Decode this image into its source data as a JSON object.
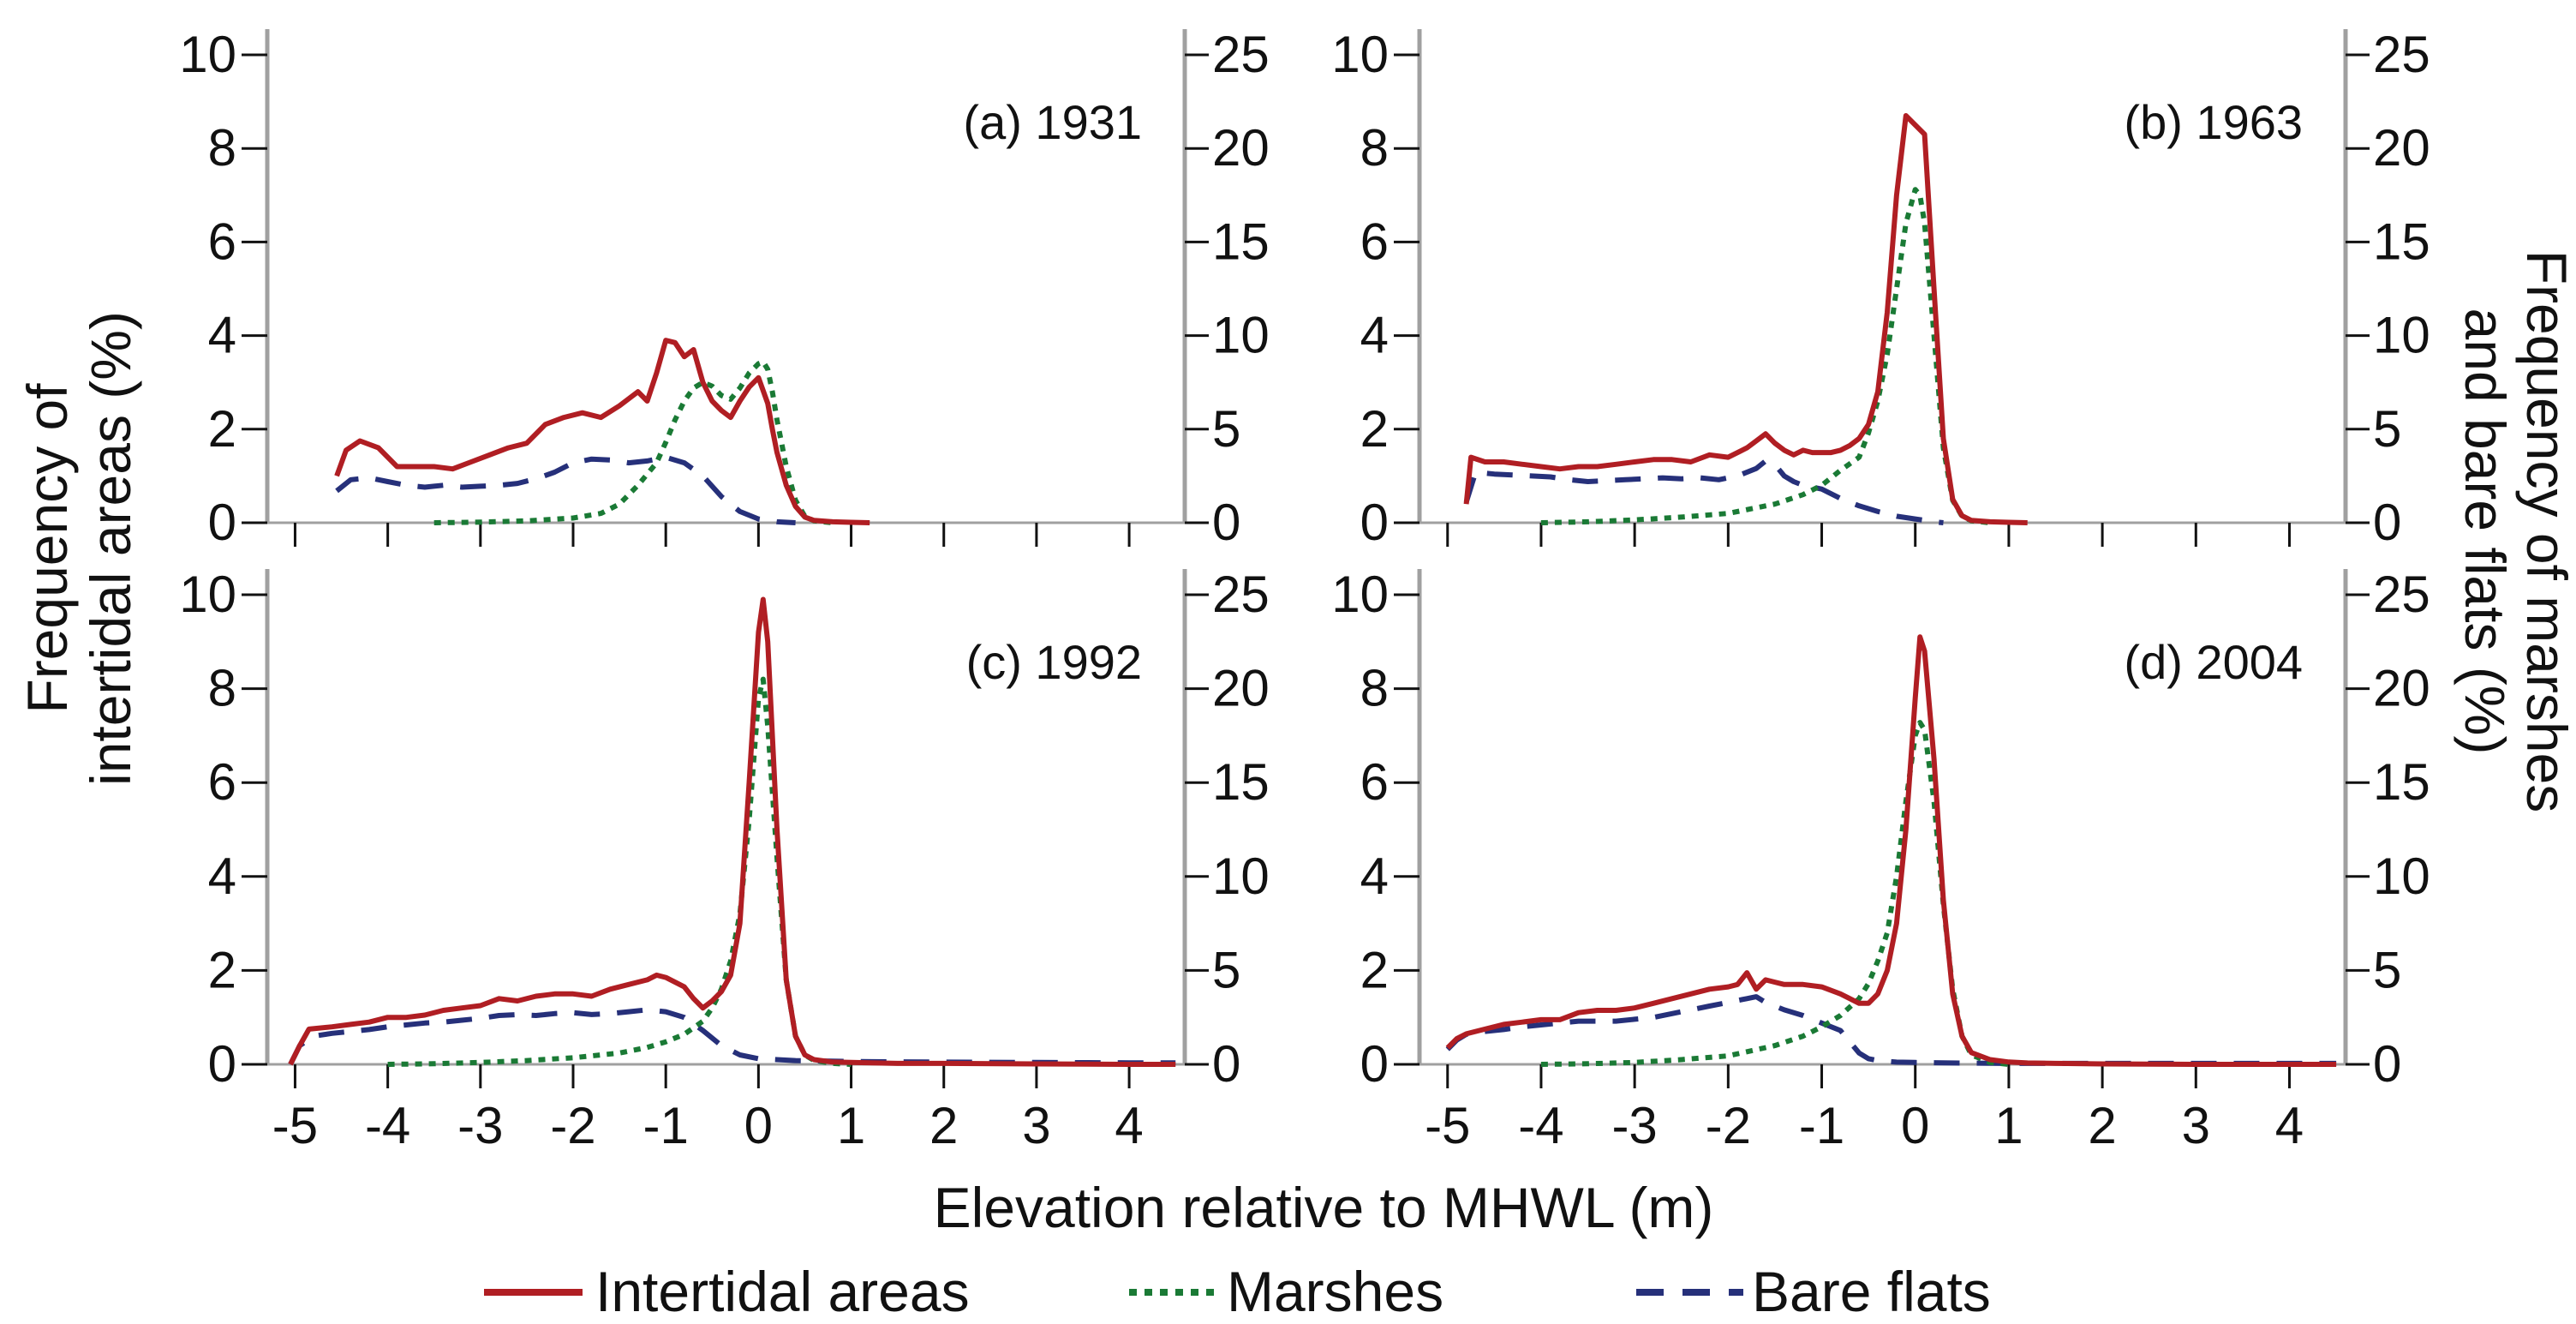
{
  "chart_data": {
    "type": "line",
    "xlabel": "Elevation relative to MHWL (m)",
    "ylabel_left": [
      "Frequency of",
      "intertidal areas (%)"
    ],
    "ylabel_right": [
      "Frequency of marshes",
      "and bare flats (%)"
    ],
    "x_ticks": [
      -5,
      -4,
      -3,
      -2,
      -1,
      0,
      1,
      2,
      3,
      4
    ],
    "x_tick_labels": [
      "-5",
      "-4",
      "-3",
      "-2",
      "-1",
      "0",
      "1",
      "2",
      "3",
      "4"
    ],
    "xlim": [
      -5.3,
      4.6
    ],
    "left_axis": {
      "ylim": [
        0,
        10.5
      ],
      "ticks": [
        0,
        2,
        4,
        6,
        8,
        10
      ],
      "tick_labels": [
        "0",
        "2",
        "4",
        "6",
        "8",
        "10"
      ]
    },
    "right_axis": {
      "ylim": [
        0,
        26.25
      ],
      "ticks": [
        0,
        5,
        10,
        15,
        20,
        25
      ],
      "tick_labels": [
        "0",
        "5",
        "10",
        "15",
        "20",
        "25"
      ]
    },
    "legend": {
      "position": "bottom",
      "entries": [
        {
          "key": "intertidal",
          "label": "Intertidal areas"
        },
        {
          "key": "marshes",
          "label": "Marshes"
        },
        {
          "key": "bare",
          "label": "Bare flats"
        }
      ]
    },
    "colors": {
      "intertidal": "#b01e23",
      "marshes": "#1a7a35",
      "bare": "#26307a",
      "axis": "#a0a0a0"
    },
    "series_axis": {
      "intertidal": "left",
      "marshes": "right",
      "bare": "right"
    },
    "panels": [
      {
        "label": "(a) 1931",
        "series": {
          "intertidal": {
            "x": [
              -4.55,
              -4.45,
              -4.3,
              -4.1,
              -3.9,
              -3.7,
              -3.5,
              -3.3,
              -3.1,
              -2.9,
              -2.7,
              -2.5,
              -2.3,
              -2.1,
              -1.9,
              -1.7,
              -1.5,
              -1.3,
              -1.2,
              -1.1,
              -1.0,
              -0.9,
              -0.8,
              -0.7,
              -0.6,
              -0.5,
              -0.4,
              -0.3,
              -0.2,
              -0.1,
              0.0,
              0.1,
              0.15,
              0.2,
              0.3,
              0.4,
              0.5,
              0.6,
              0.8,
              1.0,
              1.2
            ],
            "y": [
              1.0,
              1.55,
              1.75,
              1.6,
              1.2,
              1.2,
              1.2,
              1.15,
              1.3,
              1.45,
              1.6,
              1.7,
              2.1,
              2.25,
              2.35,
              2.25,
              2.5,
              2.8,
              2.6,
              3.2,
              3.9,
              3.85,
              3.55,
              3.7,
              3.0,
              2.6,
              2.4,
              2.25,
              2.6,
              2.9,
              3.1,
              2.55,
              2.0,
              1.5,
              0.8,
              0.35,
              0.12,
              0.05,
              0.02,
              0.01,
              0.0
            ]
          },
          "marshes": {
            "x": [
              -3.5,
              -3.0,
              -2.5,
              -2.0,
              -1.7,
              -1.5,
              -1.3,
              -1.1,
              -1.0,
              -0.9,
              -0.8,
              -0.7,
              -0.6,
              -0.5,
              -0.4,
              -0.3,
              -0.2,
              -0.1,
              0.0,
              0.05,
              0.1,
              0.15,
              0.2,
              0.3,
              0.4,
              0.5,
              0.6,
              0.8
            ],
            "y": [
              0,
              0.03,
              0.1,
              0.25,
              0.5,
              1.0,
              2.0,
              3.2,
              4.3,
              5.5,
              6.5,
              7.2,
              7.5,
              7.3,
              6.8,
              6.6,
              7.2,
              8.0,
              8.5,
              8.6,
              8.2,
              7.0,
              5.5,
              3.0,
              1.2,
              0.35,
              0.1,
              0
            ]
          },
          "bare": {
            "x": [
              -4.55,
              -4.4,
              -4.2,
              -4.0,
              -3.8,
              -3.6,
              -3.4,
              -3.2,
              -3.0,
              -2.8,
              -2.6,
              -2.4,
              -2.2,
              -2.0,
              -1.8,
              -1.6,
              -1.4,
              -1.2,
              -1.0,
              -0.8,
              -0.6,
              -0.4,
              -0.2,
              0.0,
              0.2,
              0.4
            ],
            "y": [
              1.7,
              2.3,
              2.4,
              2.2,
              2.0,
              1.9,
              2.0,
              1.9,
              1.95,
              2.0,
              2.1,
              2.35,
              2.7,
              3.2,
              3.4,
              3.35,
              3.2,
              3.3,
              3.5,
              3.2,
              2.5,
              1.4,
              0.6,
              0.2,
              0.05,
              0
            ]
          }
        }
      },
      {
        "label": "(b) 1963",
        "series": {
          "intertidal": {
            "x": [
              -4.8,
              -4.75,
              -4.6,
              -4.4,
              -4.2,
              -4.0,
              -3.8,
              -3.6,
              -3.4,
              -3.2,
              -3.0,
              -2.8,
              -2.6,
              -2.4,
              -2.2,
              -2.0,
              -1.8,
              -1.7,
              -1.6,
              -1.5,
              -1.4,
              -1.3,
              -1.2,
              -1.1,
              -1.0,
              -0.9,
              -0.8,
              -0.7,
              -0.6,
              -0.5,
              -0.4,
              -0.3,
              -0.2,
              -0.1,
              0.0,
              0.1,
              0.2,
              0.3,
              0.4,
              0.5,
              0.6,
              0.8,
              1.0,
              1.2
            ],
            "y": [
              0.4,
              1.4,
              1.3,
              1.3,
              1.25,
              1.2,
              1.15,
              1.2,
              1.2,
              1.25,
              1.3,
              1.35,
              1.35,
              1.3,
              1.45,
              1.4,
              1.6,
              1.75,
              1.9,
              1.7,
              1.55,
              1.45,
              1.55,
              1.5,
              1.5,
              1.5,
              1.55,
              1.65,
              1.8,
              2.1,
              2.8,
              4.5,
              7.0,
              8.7,
              8.5,
              8.3,
              5.0,
              1.8,
              0.5,
              0.15,
              0.05,
              0.02,
              0.01,
              0
            ]
          },
          "marshes": {
            "x": [
              -4.0,
              -3.5,
              -3.0,
              -2.5,
              -2.0,
              -1.5,
              -1.2,
              -1.0,
              -0.8,
              -0.6,
              -0.5,
              -0.4,
              -0.3,
              -0.2,
              -0.1,
              0.0,
              0.05,
              0.1,
              0.2,
              0.3,
              0.4,
              0.5,
              0.6,
              0.8
            ],
            "y": [
              0,
              0.05,
              0.15,
              0.3,
              0.5,
              1.0,
              1.5,
              2.0,
              2.8,
              3.5,
              4.8,
              6.5,
              9.0,
              12.5,
              16.0,
              17.8,
              17.5,
              16.0,
              10.0,
              4.0,
              1.2,
              0.35,
              0.1,
              0
            ]
          },
          "bare": {
            "x": [
              -4.8,
              -4.7,
              -4.5,
              -4.3,
              -4.1,
              -3.9,
              -3.7,
              -3.5,
              -3.3,
              -3.1,
              -2.9,
              -2.7,
              -2.5,
              -2.3,
              -2.1,
              -1.9,
              -1.7,
              -1.6,
              -1.5,
              -1.4,
              -1.3,
              -1.2,
              -1.0,
              -0.8,
              -0.6,
              -0.4,
              -0.2,
              0.0,
              0.2,
              0.3
            ],
            "y": [
              1.1,
              2.7,
              2.6,
              2.55,
              2.5,
              2.45,
              2.3,
              2.2,
              2.25,
              2.3,
              2.35,
              2.4,
              2.35,
              2.4,
              2.3,
              2.5,
              2.9,
              3.3,
              3.1,
              2.5,
              2.2,
              2.0,
              1.8,
              1.3,
              0.9,
              0.6,
              0.35,
              0.2,
              0.05,
              0
            ]
          }
        }
      },
      {
        "label": "(c) 1992",
        "series": {
          "intertidal": {
            "x": [
              -5.05,
              -4.95,
              -4.85,
              -4.6,
              -4.4,
              -4.2,
              -4.0,
              -3.8,
              -3.6,
              -3.4,
              -3.2,
              -3.0,
              -2.8,
              -2.6,
              -2.4,
              -2.2,
              -2.0,
              -1.8,
              -1.6,
              -1.4,
              -1.2,
              -1.1,
              -1.0,
              -0.9,
              -0.8,
              -0.7,
              -0.6,
              -0.5,
              -0.4,
              -0.3,
              -0.2,
              -0.1,
              0.0,
              0.05,
              0.1,
              0.2,
              0.3,
              0.4,
              0.5,
              0.6,
              0.8,
              1.0,
              1.5,
              2.0,
              3.0,
              4.0,
              4.5
            ],
            "y": [
              0,
              0.4,
              0.75,
              0.8,
              0.85,
              0.9,
              1.0,
              1.0,
              1.05,
              1.15,
              1.2,
              1.25,
              1.4,
              1.35,
              1.45,
              1.5,
              1.5,
              1.45,
              1.6,
              1.7,
              1.8,
              1.9,
              1.85,
              1.75,
              1.65,
              1.4,
              1.2,
              1.35,
              1.55,
              1.9,
              3.0,
              6.0,
              9.2,
              9.9,
              9.0,
              5.0,
              1.8,
              0.6,
              0.2,
              0.1,
              0.05,
              0.04,
              0.02,
              0.02,
              0.01,
              0,
              0
            ]
          },
          "marshes": {
            "x": [
              -4.0,
              -3.5,
              -3.0,
              -2.5,
              -2.0,
              -1.5,
              -1.2,
              -1.0,
              -0.8,
              -0.6,
              -0.5,
              -0.4,
              -0.3,
              -0.2,
              -0.1,
              0.0,
              0.05,
              0.1,
              0.2,
              0.3,
              0.4,
              0.5,
              0.6,
              0.8,
              1.0
            ],
            "y": [
              0,
              0.03,
              0.1,
              0.2,
              0.35,
              0.6,
              0.9,
              1.2,
              1.6,
              2.3,
              3.0,
              4.0,
              5.5,
              8.0,
              13.0,
              19.5,
              20.5,
              18.0,
              11.0,
              4.5,
              1.5,
              0.5,
              0.2,
              0.05,
              0
            ]
          },
          "bare": {
            "x": [
              -5.05,
              -4.95,
              -4.8,
              -4.6,
              -4.4,
              -4.2,
              -4.0,
              -3.8,
              -3.6,
              -3.4,
              -3.2,
              -3.0,
              -2.8,
              -2.6,
              -2.4,
              -2.2,
              -2.0,
              -1.8,
              -1.6,
              -1.4,
              -1.2,
              -1.0,
              -0.8,
              -0.6,
              -0.4,
              -0.2,
              0.0,
              0.2,
              0.4,
              1.0,
              2.0,
              3.0,
              4.0,
              4.5
            ],
            "y": [
              0,
              1.0,
              1.5,
              1.65,
              1.75,
              1.85,
              2.0,
              2.1,
              2.2,
              2.25,
              2.35,
              2.45,
              2.6,
              2.65,
              2.6,
              2.7,
              2.75,
              2.65,
              2.7,
              2.8,
              2.9,
              2.8,
              2.5,
              1.8,
              1.0,
              0.5,
              0.3,
              0.25,
              0.2,
              0.15,
              0.12,
              0.1,
              0.08,
              0.08
            ]
          }
        }
      },
      {
        "label": "(d) 2004",
        "series": {
          "intertidal": {
            "x": [
              -5.0,
              -4.9,
              -4.8,
              -4.6,
              -4.4,
              -4.2,
              -4.0,
              -3.8,
              -3.6,
              -3.4,
              -3.2,
              -3.0,
              -2.8,
              -2.6,
              -2.4,
              -2.2,
              -2.0,
              -1.9,
              -1.8,
              -1.7,
              -1.6,
              -1.5,
              -1.4,
              -1.2,
              -1.0,
              -0.8,
              -0.6,
              -0.5,
              -0.4,
              -0.3,
              -0.2,
              -0.1,
              0.0,
              0.05,
              0.1,
              0.2,
              0.3,
              0.4,
              0.5,
              0.6,
              0.8,
              1.0,
              1.2,
              1.5,
              2.0,
              3.0,
              4.0,
              4.5
            ],
            "y": [
              0.35,
              0.55,
              0.65,
              0.75,
              0.85,
              0.9,
              0.95,
              0.95,
              1.1,
              1.15,
              1.15,
              1.2,
              1.3,
              1.4,
              1.5,
              1.6,
              1.65,
              1.7,
              1.95,
              1.6,
              1.8,
              1.75,
              1.7,
              1.7,
              1.65,
              1.5,
              1.3,
              1.3,
              1.5,
              2.0,
              3.0,
              5.0,
              7.8,
              9.1,
              8.8,
              6.5,
              3.5,
              1.5,
              0.6,
              0.25,
              0.1,
              0.05,
              0.03,
              0.02,
              0.01,
              0,
              0,
              0
            ]
          },
          "marshes": {
            "x": [
              -4.0,
              -3.5,
              -3.0,
              -2.5,
              -2.0,
              -1.5,
              -1.2,
              -1.0,
              -0.8,
              -0.6,
              -0.5,
              -0.4,
              -0.3,
              -0.2,
              -0.1,
              0.0,
              0.05,
              0.1,
              0.2,
              0.3,
              0.4,
              0.5,
              0.6,
              0.8,
              1.0
            ],
            "y": [
              0,
              0.03,
              0.1,
              0.25,
              0.45,
              1.0,
              1.5,
              2.0,
              2.6,
              3.5,
              4.3,
              5.5,
              7.0,
              10.0,
              14.0,
              17.5,
              18.2,
              17.8,
              14.0,
              8.5,
              4.0,
              1.5,
              0.5,
              0.1,
              0
            ]
          },
          "bare": {
            "x": [
              -5.0,
              -4.9,
              -4.8,
              -4.6,
              -4.4,
              -4.2,
              -4.0,
              -3.8,
              -3.6,
              -3.4,
              -3.2,
              -3.0,
              -2.8,
              -2.6,
              -2.4,
              -2.2,
              -2.0,
              -1.8,
              -1.7,
              -1.6,
              -1.4,
              -1.2,
              -1.0,
              -0.8,
              -0.7,
              -0.6,
              -0.5,
              -0.4,
              -0.2,
              0.0,
              0.5,
              1.0,
              2.0,
              3.0,
              4.0,
              4.5
            ],
            "y": [
              0.8,
              1.3,
              1.6,
              1.75,
              1.85,
              2.0,
              2.1,
              2.2,
              2.3,
              2.3,
              2.3,
              2.4,
              2.5,
              2.7,
              2.9,
              3.1,
              3.3,
              3.5,
              3.6,
              3.3,
              2.9,
              2.6,
              2.2,
              1.8,
              1.2,
              0.6,
              0.3,
              0.2,
              0.12,
              0.1,
              0.07,
              0.05,
              0.05,
              0.05,
              0.05,
              0.05
            ]
          }
        }
      }
    ]
  }
}
